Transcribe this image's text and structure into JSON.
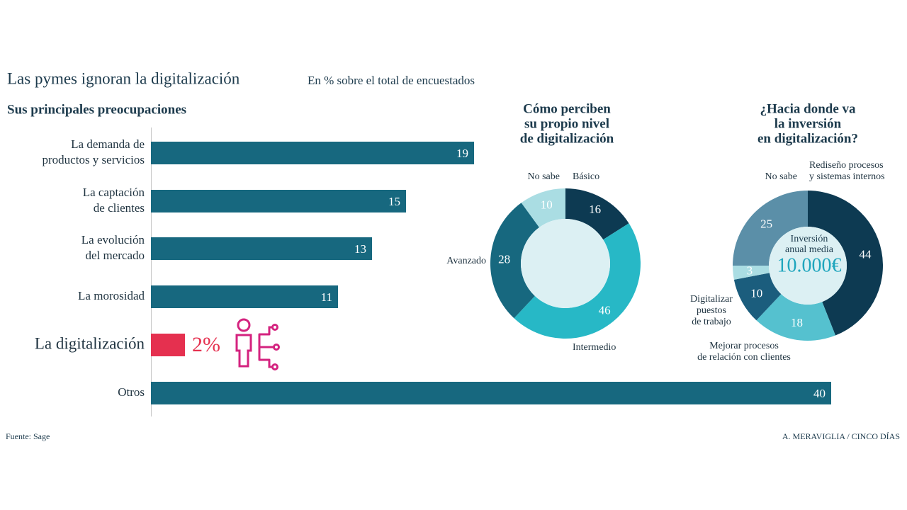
{
  "title": "Las pymes ignoran la digitalización",
  "subtitle": "En % sobre el total de encuestados",
  "source": "Fuente: Sage",
  "credit": "A. MERAVIGLIA / CINCO DÍAS",
  "chart_data": [
    {
      "type": "bar",
      "orientation": "horizontal",
      "title": "Sus principales preocupaciones",
      "categories": [
        [
          "La demanda de",
          "productos y servicios"
        ],
        [
          "La captación",
          "de clientes"
        ],
        [
          "La evolución",
          "del mercado"
        ],
        [
          "La morosidad"
        ],
        [
          "La digitalización"
        ],
        [
          "Otros"
        ]
      ],
      "values": [
        19,
        15,
        13,
        11,
        2,
        40
      ],
      "value_labels": [
        "19",
        "15",
        "13",
        "11",
        "2%",
        "40"
      ],
      "colors": [
        "#17687f",
        "#17687f",
        "#17687f",
        "#17687f",
        "#e5304f",
        "#17687f"
      ]
    },
    {
      "type": "donut",
      "title": [
        "Cómo perciben",
        "su propio nivel",
        "de digitalización"
      ],
      "categories": [
        [
          "Básico"
        ],
        [
          "Intermedio"
        ],
        [
          "Avanzado"
        ],
        [
          "No sabe"
        ]
      ],
      "values": [
        16,
        46,
        28,
        10
      ],
      "colors": [
        "#0d3a52",
        "#27b8c6",
        "#17687f",
        "#aadde3"
      ]
    },
    {
      "type": "donut",
      "title": [
        "¿Hacia donde va",
        "la inversión",
        "en digitalización?"
      ],
      "categories": [
        [
          "Rediseño procesos",
          "y sistemas internos"
        ],
        [
          "Mejorar procesos",
          "de relación con clientes"
        ],
        [
          "Digitalizar",
          "puestos",
          "de trabajo"
        ],
        null,
        [
          "No sabe"
        ]
      ],
      "values": [
        44,
        18,
        10,
        3,
        25
      ],
      "colors": [
        "#0d3a52",
        "#55c1cf",
        "#1b5d7d",
        "#aadde3",
        "#5b8fa8"
      ],
      "center_label": [
        "Inversión",
        "anual media"
      ],
      "center_value": "10.000€"
    }
  ]
}
